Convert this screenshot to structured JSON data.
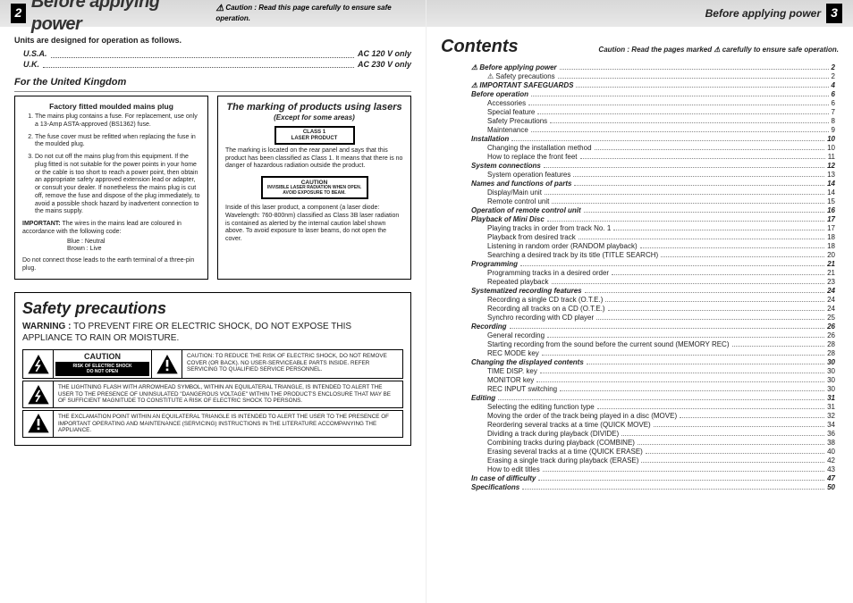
{
  "left": {
    "page_num": "2",
    "header_title": "Before applying power",
    "header_caution_icon": "⚠",
    "header_caution": "Caution : Read this page carefully to ensure safe operation.",
    "units_hdr": "Units are designed for operation as follows.",
    "units": [
      {
        "region": "U.S.A.",
        "spec": "AC 120 V only"
      },
      {
        "region": "U.K.",
        "spec": "AC 230 V only"
      }
    ],
    "uk_title": "For the United Kingdom",
    "uk_box_title": "Factory fitted moulded mains plug",
    "uk_items": [
      "The mains plug contains a fuse. For replacement, use only a 13-Amp ASTA-approved (BS1362) fuse.",
      "The fuse cover must be refitted when replacing the fuse in the moulded plug.",
      "Do not cut off the mains plug from this equipment. If the plug fitted is not suitable for the power points in your home or the cable is too short to reach a power point, then obtain an appropriate safety approved extension lead or adapter, or consult your dealer.\nIf nonetheless the mains plug is cut off, remove the fuse and dispose of the plug immediately, to avoid a possible shock hazard by inadvertent connection to the mains supply."
    ],
    "uk_important_label": "IMPORTANT:",
    "uk_important": "The wires in the mains lead are coloured in accordance with the following code:",
    "uk_colors": [
      "Blue    : Neutral",
      "Brown  : Live"
    ],
    "uk_foot": "Do not connect those leads to the earth terminal of a three-pin plug.",
    "laser_title": "The marking of products using lasers",
    "laser_sub": "(Except for some areas)",
    "laser_label_l1": "CLASS 1",
    "laser_label_l2": "LASER PRODUCT",
    "laser_p1": "The marking is located on the rear panel and says that this product has been classified as Class 1. It means that there is no danger of hazardous radiation outside the product.",
    "laser_caution_t": "CAUTION",
    "laser_caution_b": "INVISIBLE LASER RADIATION WHEN OPEN. AVOID EXPOSURE TO BEAM.",
    "laser_p2": "Inside of this laser product, a component (a laser diode: Wavelength: 760-800nm) classified as Class 3B laser radiation is contained as alerted by the internal caution label shown above. To avoid exposure to laser beams, do not open the cover.",
    "safety_title": "Safety precautions",
    "safety_warn_label": "WARNING :",
    "safety_warn": "TO PREVENT FIRE OR ELECTRIC SHOCK, DO NOT EXPOSE THIS APPLIANCE TO RAIN OR MOISTURE.",
    "caution_word": "CAUTION",
    "caution_black_l1": "RISK OF ELECTRIC SHOCK",
    "caution_black_l2": "DO NOT OPEN",
    "caution_right": "CAUTION: TO REDUCE THE RISK OF ELECTRIC SHOCK, DO NOT REMOVE COVER (OR BACK). NO USER-SERVICEABLE PARTS INSIDE. REFER SERVICING TO QUALIFIED SERVICE PERSONNEL.",
    "row_bolt": "THE LIGHTNING FLASH WITH ARROWHEAD SYMBOL, WITHIN AN EQUILATERAL TRIANGLE, IS INTENDED TO ALERT THE USER TO THE PRESENCE OF UNINSULATED \"DANGEROUS VOLTAGE\" WITHIN THE PRODUCT'S ENCLOSURE THAT MAY BE OF SUFFICIENT MAGNITUDE TO CONSTITUTE A RISK OF ELECTRIC SHOCK TO PERSONS.",
    "row_excl": "THE EXCLAMATION POINT WITHIN AN EQUILATERAL TRIANGLE IS INTENDED TO ALERT THE USER TO THE PRESENCE OF IMPORTANT OPERATING AND MAINTENANCE (SERVICING) INSTRUCTIONS IN THE LITERATURE ACCOMPANYING THE APPLIANCE."
  },
  "right": {
    "page_num": "3",
    "header_title": "Before applying power",
    "contents_title": "Contents",
    "contents_caution": "Caution : Read the pages marked ⚠ carefully to ensure safe operation.",
    "toc": [
      {
        "l": 0,
        "t": "⚠ Before applying power",
        "p": "2"
      },
      {
        "l": 1,
        "t": "⚠ Safety precautions",
        "p": "2"
      },
      {
        "l": 0,
        "t": "⚠ IMPORTANT SAFEGUARDS",
        "p": "4"
      },
      {
        "l": 0,
        "t": "Before operation",
        "p": "6"
      },
      {
        "l": 1,
        "t": "Accessories",
        "p": "6"
      },
      {
        "l": 1,
        "t": "Special feature",
        "p": "7"
      },
      {
        "l": 1,
        "t": "Safety Precautions",
        "p": "8"
      },
      {
        "l": 1,
        "t": "Maintenance",
        "p": "9"
      },
      {
        "l": 0,
        "t": "Installation",
        "p": "10"
      },
      {
        "l": 1,
        "t": "Changing the installation method",
        "p": "10"
      },
      {
        "l": 1,
        "t": "How to replace the front feet",
        "p": "11"
      },
      {
        "l": 0,
        "t": "System connections",
        "p": "12"
      },
      {
        "l": 1,
        "t": "System operation features",
        "p": "13"
      },
      {
        "l": 0,
        "t": "Names and functions of parts",
        "p": "14"
      },
      {
        "l": 1,
        "t": "Display/Main unit",
        "p": "14"
      },
      {
        "l": 1,
        "t": "Remote control unit",
        "p": "15"
      },
      {
        "l": 0,
        "t": "Operation of remote control unit",
        "p": "16"
      },
      {
        "l": 0,
        "t": "Playback of Mini Disc",
        "p": "17"
      },
      {
        "l": 1,
        "t": "Playing tracks in order from track No. 1",
        "p": "17"
      },
      {
        "l": 1,
        "t": "Playback from desired track",
        "p": "18"
      },
      {
        "l": 1,
        "t": "Listening in random order (RANDOM playback)",
        "p": "18"
      },
      {
        "l": 1,
        "t": "Searching a desired track by its title (TITLE SEARCH)",
        "p": "20"
      },
      {
        "l": 0,
        "t": "Programming",
        "p": "21"
      },
      {
        "l": 1,
        "t": "Programming tracks in a desired order",
        "p": "21"
      },
      {
        "l": 1,
        "t": "Repeated playback",
        "p": "23"
      },
      {
        "l": 0,
        "t": "Systematized recording features",
        "p": "24"
      },
      {
        "l": 1,
        "t": "Recording a single CD track (O.T.E.)",
        "p": "24"
      },
      {
        "l": 1,
        "t": "Recording all tracks on a CD (O.T.E.)",
        "p": "24"
      },
      {
        "l": 1,
        "t": "Synchro recording with CD player",
        "p": "25"
      },
      {
        "l": 0,
        "t": "Recording",
        "p": "26"
      },
      {
        "l": 1,
        "t": "General recording",
        "p": "26"
      },
      {
        "l": 1,
        "t": "Starting recording from the sound before the current sound (MEMORY REC)",
        "p": "28"
      },
      {
        "l": 1,
        "t": "REC MODE key",
        "p": "28"
      },
      {
        "l": 0,
        "t": "Changing the displayed contents",
        "p": "30"
      },
      {
        "l": 1,
        "t": "TIME DISP. key",
        "p": "30"
      },
      {
        "l": 1,
        "t": "MONITOR key",
        "p": "30"
      },
      {
        "l": 1,
        "t": "REC INPUT switching",
        "p": "30"
      },
      {
        "l": 0,
        "t": "Editing",
        "p": "31"
      },
      {
        "l": 1,
        "t": "Selecting the editing function type",
        "p": "31"
      },
      {
        "l": 1,
        "t": "Moving the order of the track being played in a disc (MOVE)",
        "p": "32"
      },
      {
        "l": 1,
        "t": "Reordering several tracks at a time (QUICK MOVE)",
        "p": "34"
      },
      {
        "l": 1,
        "t": "Dividing a track during playback (DIVIDE)",
        "p": "36"
      },
      {
        "l": 1,
        "t": "Combining tracks during playback (COMBINE)",
        "p": "38"
      },
      {
        "l": 1,
        "t": "Erasing several tracks at a time (QUICK ERASE)",
        "p": "40"
      },
      {
        "l": 1,
        "t": "Erasing a single track during playback (ERASE)",
        "p": "42"
      },
      {
        "l": 1,
        "t": "How to edit titles",
        "p": "43"
      },
      {
        "l": 0,
        "t": "In case of difficulty",
        "p": "47"
      },
      {
        "l": 0,
        "t": "Specifications",
        "p": "50"
      }
    ]
  }
}
